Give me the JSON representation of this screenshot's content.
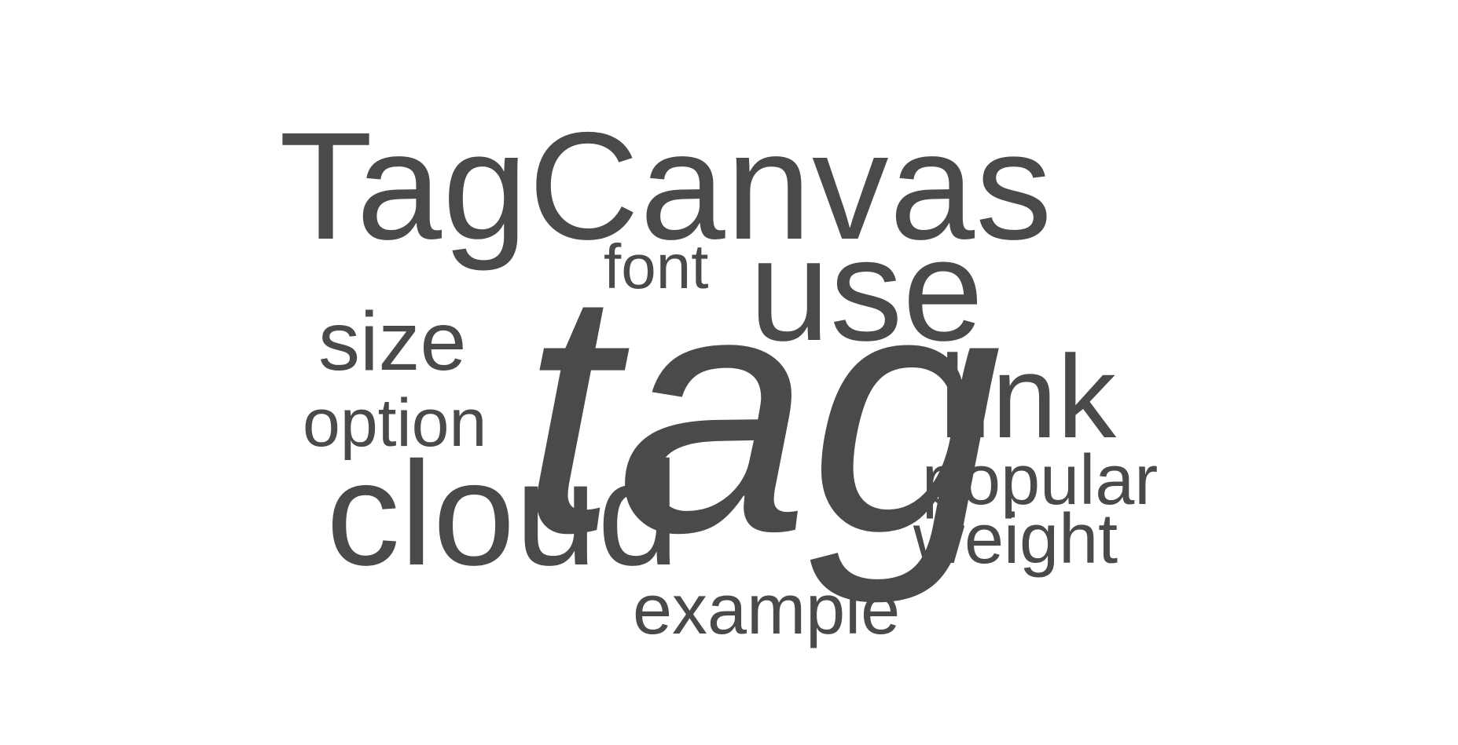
{
  "colors": {
    "background": "#ffffff",
    "text": "#4a4a4a"
  },
  "cloud": {
    "words": [
      {
        "text": "TagCanvas"
      },
      {
        "text": "font"
      },
      {
        "text": "use"
      },
      {
        "text": "size"
      },
      {
        "text": "option"
      },
      {
        "text": "tag"
      },
      {
        "text": "link"
      },
      {
        "text": "popular"
      },
      {
        "text": "cloud"
      },
      {
        "text": "weight"
      },
      {
        "text": "example"
      }
    ]
  }
}
